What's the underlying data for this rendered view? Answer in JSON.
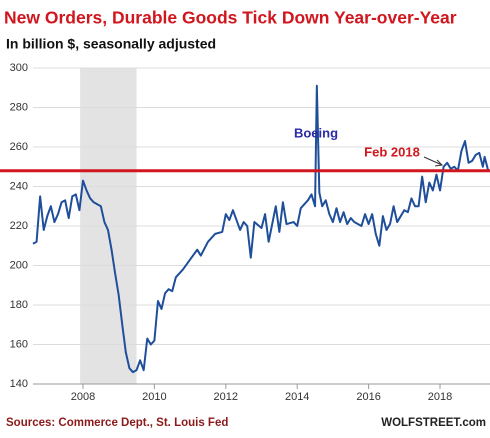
{
  "chart_data": {
    "type": "line",
    "title": "New Orders, Durable Goods Tick Down Year-over-Year",
    "subtitle": "In billion $, seasonally adjusted",
    "source": "Sources: Commerce Dept., St. Louis Fed",
    "brand": "WOLFSTREET.com",
    "annotations": [
      {
        "text": "Boeing",
        "color": "#2a2aa8"
      },
      {
        "text": "Feb 2018",
        "color": "#d0161e"
      }
    ],
    "reference_line": {
      "value": 248,
      "color": "#d0161e"
    },
    "shaded_regions": [
      [
        2007.92,
        2009.5
      ]
    ],
    "x": [
      2006.6,
      2006.7,
      2006.8,
      2006.9,
      2007.0,
      2007.1,
      2007.2,
      2007.3,
      2007.4,
      2007.5,
      2007.6,
      2007.7,
      2007.8,
      2007.9,
      2008.0,
      2008.1,
      2008.2,
      2008.3,
      2008.4,
      2008.5,
      2008.6,
      2008.7,
      2008.8,
      2008.9,
      2009.0,
      2009.1,
      2009.2,
      2009.3,
      2009.4,
      2009.5,
      2009.6,
      2009.7,
      2009.8,
      2009.9,
      2010.0,
      2010.1,
      2010.2,
      2010.3,
      2010.4,
      2010.5,
      2010.6,
      2010.8,
      2011.0,
      2011.2,
      2011.3,
      2011.5,
      2011.7,
      2011.9,
      2012.0,
      2012.1,
      2012.2,
      2012.4,
      2012.5,
      2012.6,
      2012.7,
      2012.8,
      2013.0,
      2013.1,
      2013.2,
      2013.4,
      2013.5,
      2013.6,
      2013.7,
      2013.9,
      2014.0,
      2014.1,
      2014.3,
      2014.4,
      2014.5,
      2014.55,
      2014.62,
      2014.7,
      2014.8,
      2014.9,
      2015.0,
      2015.1,
      2015.2,
      2015.3,
      2015.4,
      2015.5,
      2015.6,
      2015.8,
      2015.9,
      2016.0,
      2016.1,
      2016.2,
      2016.3,
      2016.4,
      2016.5,
      2016.6,
      2016.7,
      2016.8,
      2017.0,
      2017.1,
      2017.2,
      2017.3,
      2017.4,
      2017.5,
      2017.6,
      2017.7,
      2017.8,
      2017.9,
      2018.0,
      2018.1,
      2018.2,
      2018.3,
      2018.4,
      2018.5,
      2018.6,
      2018.7,
      2018.8,
      2018.9,
      2019.0,
      2019.1,
      2019.2,
      2019.25,
      2019.35
    ],
    "series": [
      {
        "name": "New Orders, Durable Goods",
        "color": "#1f4e9a",
        "values": [
          211,
          212,
          235,
          218,
          225,
          230,
          222,
          226,
          232,
          233,
          224,
          235,
          236,
          228,
          243,
          238,
          234,
          232,
          231,
          230,
          222,
          218,
          208,
          196,
          185,
          170,
          156,
          148,
          146,
          147,
          152,
          147,
          163,
          160,
          162,
          182,
          178,
          186,
          188,
          187,
          194,
          198,
          203,
          208,
          205,
          212,
          216,
          217,
          226,
          223,
          228,
          218,
          222,
          220,
          204,
          222,
          219,
          226,
          212,
          230,
          217,
          232,
          221,
          222,
          220,
          229,
          233,
          236,
          230,
          291,
          237,
          230,
          233,
          226,
          222,
          229,
          222,
          227,
          221,
          224,
          222,
          220,
          226,
          221,
          226,
          216,
          210,
          225,
          218,
          221,
          230,
          222,
          228,
          227,
          234,
          230,
          230,
          245,
          232,
          242,
          238,
          246,
          238,
          250,
          252,
          249,
          250,
          248,
          258,
          263,
          252,
          253,
          256,
          257,
          250,
          255,
          248
        ]
      }
    ],
    "xlim": [
      2006.6,
      2019.4
    ],
    "ylim": [
      140,
      300
    ],
    "xticks": [
      2008,
      2010,
      2012,
      2014,
      2016,
      2018
    ],
    "yticks": [
      140,
      160,
      180,
      200,
      220,
      240,
      260,
      280,
      300
    ],
    "grid": true,
    "shade_color": "#e3e3e3",
    "grid_color": "#dcdcdc"
  }
}
